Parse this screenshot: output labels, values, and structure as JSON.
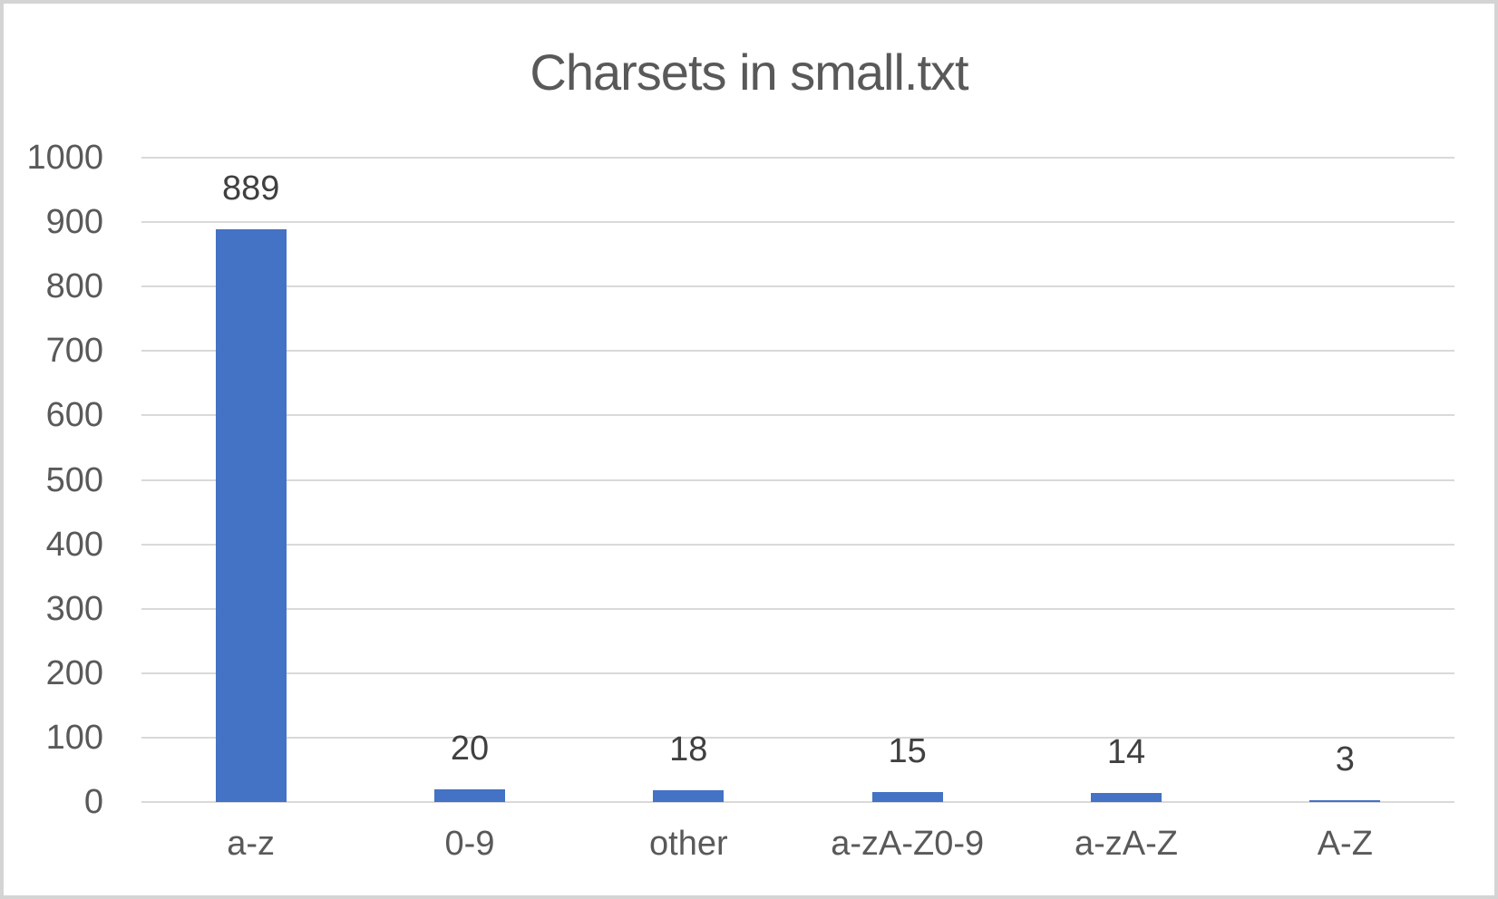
{
  "chart_data": {
    "type": "bar",
    "title": "Charsets in small.txt",
    "categories": [
      "a-z",
      "0-9",
      "other",
      "a-zA-Z0-9",
      "a-zA-Z",
      "A-Z"
    ],
    "values": [
      889,
      20,
      18,
      15,
      14,
      3
    ],
    "xlabel": "",
    "ylabel": "",
    "ylim": [
      0,
      1000
    ],
    "ytick_step": 100,
    "ytick_labels": [
      "0",
      "100",
      "200",
      "300",
      "400",
      "500",
      "600",
      "700",
      "800",
      "900",
      "1000"
    ],
    "data_labels_shown": true,
    "legend_position": "none",
    "grid": "horizontal",
    "colors": {
      "bar": "#4472C4",
      "gridline": "#D9D9D9",
      "axis_text": "#595959",
      "data_label_text": "#404040",
      "title_text": "#595959",
      "frame_border": "#D4D4D4",
      "background": "#FFFFFF"
    }
  }
}
